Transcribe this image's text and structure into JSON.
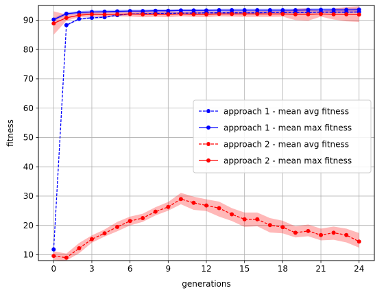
{
  "chart_data": {
    "type": "line",
    "title": "",
    "xlabel": "generations",
    "ylabel": "fitness",
    "xlim": [
      -1.2,
      25.2
    ],
    "ylim": [
      8,
      95
    ],
    "xticks": [
      0,
      3,
      6,
      9,
      12,
      15,
      18,
      21,
      24
    ],
    "yticks": [
      10,
      20,
      30,
      40,
      50,
      60,
      70,
      80,
      90
    ],
    "grid": true,
    "legend_position": "center-right",
    "x": [
      0,
      1,
      2,
      3,
      4,
      5,
      6,
      7,
      8,
      9,
      10,
      11,
      12,
      13,
      14,
      15,
      16,
      17,
      18,
      19,
      20,
      21,
      22,
      23,
      24
    ],
    "series": [
      {
        "name": "approach 1 - mean avg fitness",
        "color": "#0000ff",
        "linestyle": "dashed",
        "marker": "circle",
        "values": [
          11.8,
          88.3,
          90.4,
          90.8,
          91.0,
          91.7,
          92.1,
          92.2,
          92.3,
          92.3,
          92.4,
          92.4,
          92.5,
          92.5,
          92.5,
          92.5,
          92.5,
          92.6,
          92.6,
          92.6,
          92.6,
          92.7,
          92.7,
          92.7,
          92.8
        ],
        "band": 0.3
      },
      {
        "name": "approach 1 - mean max fitness",
        "color": "#0000ff",
        "linestyle": "solid",
        "marker": "circle",
        "values": [
          90.2,
          92.2,
          92.6,
          92.8,
          92.9,
          93.0,
          93.1,
          93.1,
          93.2,
          93.2,
          93.3,
          93.3,
          93.3,
          93.4,
          93.4,
          93.4,
          93.4,
          93.4,
          93.4,
          93.4,
          93.5,
          93.5,
          93.5,
          93.5,
          93.6
        ],
        "band": 0.5
      },
      {
        "name": "approach 2 - mean avg fitness",
        "color": "#ff0000",
        "linestyle": "dashed",
        "marker": "circle",
        "values": [
          9.6,
          9.0,
          12.2,
          15.3,
          17.3,
          19.5,
          21.5,
          22.5,
          24.7,
          26.3,
          29.0,
          27.7,
          26.8,
          25.9,
          23.8,
          22.1,
          22.1,
          20.1,
          19.4,
          17.5,
          18.1,
          16.7,
          17.5,
          16.7,
          14.5
        ],
        "lower": [
          8.2,
          8.0,
          10.5,
          14.1,
          16.2,
          18.0,
          20.0,
          21.2,
          23.4,
          25.0,
          27.2,
          25.3,
          24.9,
          23.0,
          21.5,
          19.5,
          19.7,
          17.6,
          17.3,
          15.9,
          16.3,
          14.9,
          15.1,
          14.2,
          12.4
        ],
        "upper": [
          11.2,
          10.4,
          14.0,
          16.6,
          18.6,
          21.2,
          23.0,
          24.0,
          26.2,
          28.0,
          31.1,
          29.8,
          28.9,
          28.1,
          25.9,
          24.4,
          24.4,
          22.5,
          21.6,
          19.7,
          20.3,
          18.9,
          19.6,
          18.9,
          17.4
        ]
      },
      {
        "name": "approach 2 - mean max fitness",
        "color": "#ff0000",
        "linestyle": "solid",
        "marker": "circle",
        "values": [
          88.9,
          90.8,
          91.7,
          92.0,
          91.9,
          92.0,
          92.1,
          92.0,
          92.0,
          92.0,
          92.1,
          92.0,
          92.0,
          92.1,
          92.1,
          92.1,
          92.1,
          92.1,
          92.1,
          92.0,
          92.0,
          92.1,
          92.0,
          92.0,
          91.9
        ],
        "lower": [
          85.0,
          89.8,
          91.0,
          91.2,
          91.1,
          91.3,
          91.2,
          91.0,
          91.1,
          91.0,
          91.3,
          91.1,
          91.0,
          91.3,
          91.2,
          91.1,
          91.1,
          91.1,
          91.2,
          90.0,
          89.8,
          91.2,
          90.2,
          89.6,
          89.4
        ],
        "upper": [
          93.0,
          91.9,
          92.4,
          92.8,
          92.7,
          92.7,
          92.9,
          93.0,
          92.9,
          93.0,
          92.9,
          93.0,
          93.0,
          92.9,
          93.0,
          93.0,
          93.1,
          93.1,
          93.0,
          93.9,
          94.0,
          93.0,
          93.9,
          94.5,
          94.7
        ]
      }
    ]
  }
}
